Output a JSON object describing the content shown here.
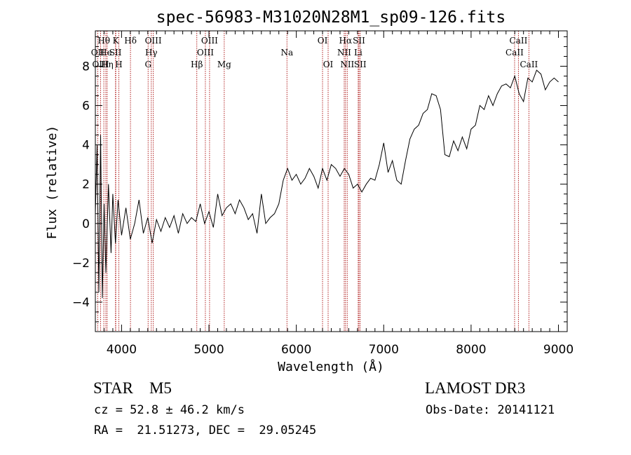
{
  "chart_data": {
    "type": "line",
    "title": "spec-56983-M31020N28M1_sp09-126.fits",
    "xlabel": "Wavelength (Å)",
    "ylabel": "Flux (relative)",
    "xlim": [
      3700,
      9100
    ],
    "ylim": [
      -5.5,
      9.8
    ],
    "xticks": [
      4000,
      5000,
      6000,
      7000,
      8000,
      9000
    ],
    "yticks": [
      -4,
      -2,
      0,
      2,
      4,
      6,
      8
    ],
    "grid": false,
    "line_color": "#000000",
    "marker_color": "#b22222",
    "series": [
      {
        "x": [
          3700,
          3720,
          3740,
          3760,
          3780,
          3800,
          3820,
          3850,
          3880,
          3900,
          3930,
          3960,
          4000,
          4050,
          4100,
          4150,
          4200,
          4250,
          4300,
          4350,
          4400,
          4450,
          4500,
          4550,
          4600,
          4650,
          4700,
          4750,
          4800,
          4850,
          4900,
          4950,
          5000,
          5050,
          5100,
          5150,
          5200,
          5250,
          5300,
          5350,
          5400,
          5450,
          5500,
          5550,
          5600,
          5650,
          5700,
          5750,
          5800,
          5850,
          5900,
          5950,
          6000,
          6050,
          6100,
          6150,
          6200,
          6250,
          6300,
          6350,
          6400,
          6450,
          6500,
          6550,
          6600,
          6650,
          6700,
          6750,
          6800,
          6850,
          6900,
          6950,
          7000,
          7050,
          7100,
          7150,
          7200,
          7250,
          7300,
          7350,
          7400,
          7450,
          7500,
          7550,
          7600,
          7650,
          7700,
          7750,
          7800,
          7850,
          7900,
          7950,
          8000,
          8050,
          8100,
          8150,
          8200,
          8250,
          8300,
          8350,
          8400,
          8450,
          8500,
          8550,
          8600,
          8650,
          8700,
          8750,
          8800,
          8850,
          8900,
          8950,
          9000
        ],
        "y": [
          0.5,
          4.0,
          -3.5,
          4.5,
          -3.8,
          1.0,
          -2.5,
          2.0,
          -1.5,
          1.5,
          -1.0,
          1.2,
          -0.6,
          0.8,
          -0.8,
          0.0,
          1.2,
          -0.5,
          0.3,
          -1.0,
          0.2,
          -0.4,
          0.3,
          -0.2,
          0.4,
          -0.5,
          0.5,
          0.0,
          0.3,
          0.1,
          1.0,
          0.0,
          0.6,
          -0.2,
          1.5,
          0.4,
          0.8,
          1.0,
          0.5,
          1.2,
          0.8,
          0.2,
          0.5,
          -0.5,
          1.5,
          0.0,
          0.3,
          0.5,
          1.0,
          2.2,
          2.8,
          2.2,
          2.5,
          2.0,
          2.3,
          2.8,
          2.4,
          1.8,
          2.8,
          2.2,
          3.0,
          2.8,
          2.4,
          2.8,
          2.5,
          1.8,
          2.0,
          1.6,
          2.0,
          2.3,
          2.2,
          3.0,
          4.1,
          2.6,
          3.2,
          2.2,
          2.0,
          3.2,
          4.3,
          4.8,
          5.0,
          5.6,
          5.8,
          6.6,
          6.5,
          5.8,
          3.5,
          3.4,
          4.2,
          3.7,
          4.4,
          3.8,
          4.8,
          5.0,
          6.0,
          5.8,
          6.5,
          6.0,
          6.6,
          7.0,
          7.1,
          6.9,
          7.5,
          6.6,
          6.2,
          7.4,
          7.2,
          7.8,
          7.6,
          6.8,
          7.2,
          7.4,
          7.2
        ]
      }
    ],
    "lines": [
      {
        "label": "Hθ",
        "x": 3797,
        "row": 0
      },
      {
        "label": "OII",
        "x": 3727,
        "row": 1
      },
      {
        "label": "OIII",
        "x": 3760,
        "row": 2
      },
      {
        "label": "He",
        "x": 3820,
        "row": 1
      },
      {
        "label": "Hη",
        "x": 3835,
        "row": 2
      },
      {
        "label": "K",
        "x": 3934,
        "row": 0
      },
      {
        "label": "SII",
        "x": 3930,
        "row": 1
      },
      {
        "label": "H",
        "x": 3969,
        "row": 2
      },
      {
        "label": "Hδ",
        "x": 4102,
        "row": 0
      },
      {
        "label": "OIII",
        "x": 4363,
        "row": 0
      },
      {
        "label": "Hγ",
        "x": 4340,
        "row": 1
      },
      {
        "label": "G",
        "x": 4304,
        "row": 2
      },
      {
        "label": "Hβ",
        "x": 4861,
        "row": 2
      },
      {
        "label": "OIII",
        "x": 4959,
        "row": 1
      },
      {
        "label": "OIII",
        "x": 5007,
        "row": 0
      },
      {
        "label": "Mg",
        "x": 5175,
        "row": 2
      },
      {
        "label": "Na",
        "x": 5893,
        "row": 1
      },
      {
        "label": "OI",
        "x": 6300,
        "row": 0
      },
      {
        "label": "OI",
        "x": 6364,
        "row": 2
      },
      {
        "label": "Hα",
        "x": 6563,
        "row": 0
      },
      {
        "label": "NII",
        "x": 6548,
        "row": 1
      },
      {
        "label": "NII",
        "x": 6583,
        "row": 2
      },
      {
        "label": "SII",
        "x": 6717,
        "row": 0
      },
      {
        "label": "Li",
        "x": 6708,
        "row": 1
      },
      {
        "label": "SII",
        "x": 6731,
        "row": 2
      },
      {
        "label": "CaII",
        "x": 8542,
        "row": 0
      },
      {
        "label": "CaII",
        "x": 8498,
        "row": 1
      },
      {
        "label": "CaII",
        "x": 8662,
        "row": 2
      }
    ]
  },
  "info": {
    "object": "STAR    M5",
    "survey": "LAMOST DR3",
    "cz": "cz = 52.8 ± 46.2 km/s",
    "obs_date": "Obs-Date: 20141121",
    "coords": "RA =  21.51273, DEC =  29.05245"
  }
}
